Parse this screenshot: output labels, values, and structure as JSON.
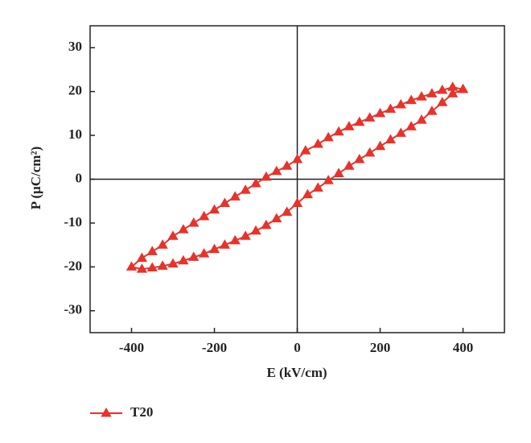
{
  "chart_data": {
    "type": "line",
    "x_label": "E (kV/cm)",
    "y_label": "P (μC/cm²)",
    "x": [
      400,
      375,
      350,
      325,
      300,
      275,
      250,
      225,
      200,
      175,
      150,
      125,
      100,
      75,
      50,
      20,
      0,
      -25,
      -50,
      -75,
      -100,
      -125,
      -150,
      -175,
      -200,
      -225,
      -250,
      -275,
      -300,
      -325,
      -350,
      -375,
      -400,
      -375,
      -350,
      -325,
      -300,
      -275,
      -250,
      -225,
      -200,
      -175,
      -150,
      -125,
      -100,
      -75,
      -50,
      -25,
      0,
      25,
      50,
      75,
      100,
      125,
      150,
      175,
      200,
      225,
      250,
      275,
      300,
      325,
      350,
      375,
      400
    ],
    "series": [
      {
        "name": "T20",
        "color": "#e8322a",
        "values": [
          20.5,
          21,
          20.3,
          19.5,
          18.8,
          18,
          17,
          16,
          15,
          14,
          13,
          12,
          10.8,
          9.5,
          8,
          6.5,
          4.5,
          3,
          1.8,
          0.5,
          -1,
          -2.5,
          -4,
          -5.5,
          -7,
          -8.5,
          -10,
          -11.5,
          -13,
          -15,
          -16.5,
          -18,
          -20,
          -20.5,
          -20.2,
          -19.8,
          -19.3,
          -18.6,
          -17.8,
          -17,
          -16,
          -15,
          -14,
          -13,
          -11.8,
          -10.5,
          -9,
          -7.5,
          -5.5,
          -3.5,
          -2,
          -0.3,
          1.3,
          3,
          4.5,
          6,
          7.5,
          9,
          10.5,
          12,
          13.5,
          15.5,
          17.5,
          19.5,
          20.5
        ]
      }
    ],
    "xlim": [
      -500,
      500
    ],
    "ylim": [
      -35,
      35
    ],
    "xticks": [
      -400,
      -200,
      0,
      200,
      400
    ],
    "yticks": [
      -30,
      -20,
      -10,
      0,
      10,
      20,
      30
    ],
    "grid": false
  }
}
